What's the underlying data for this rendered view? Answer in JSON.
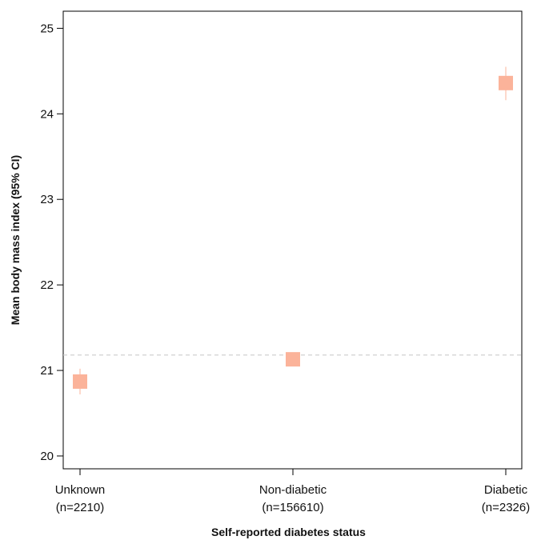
{
  "chart_data": {
    "type": "scatter",
    "xlabel": "Self-reported diabetes status",
    "ylabel": "Mean body mass index (95% CI)",
    "categories": [
      "Unknown",
      "Non-diabetic",
      "Diabetic"
    ],
    "category_counts": [
      "(n=2210)",
      "(n=156610)",
      "(n=2326)"
    ],
    "points": [
      {
        "category": "Unknown",
        "mean": 20.87,
        "ci_low": 20.72,
        "ci_high": 21.02
      },
      {
        "category": "Non-diabetic",
        "mean": 21.13,
        "ci_low": 21.11,
        "ci_high": 21.15
      },
      {
        "category": "Diabetic",
        "mean": 24.36,
        "ci_low": 24.16,
        "ci_high": 24.55
      }
    ],
    "reference_line": 21.18,
    "ylim": [
      19.85,
      25.2
    ],
    "yticks": [
      20,
      21,
      22,
      23,
      24,
      25
    ],
    "grid": false,
    "colors": {
      "marker": "#fbb39a",
      "ci_line": "#fbb39a",
      "reference_line": "#cccccc",
      "axis": "#000000"
    }
  }
}
